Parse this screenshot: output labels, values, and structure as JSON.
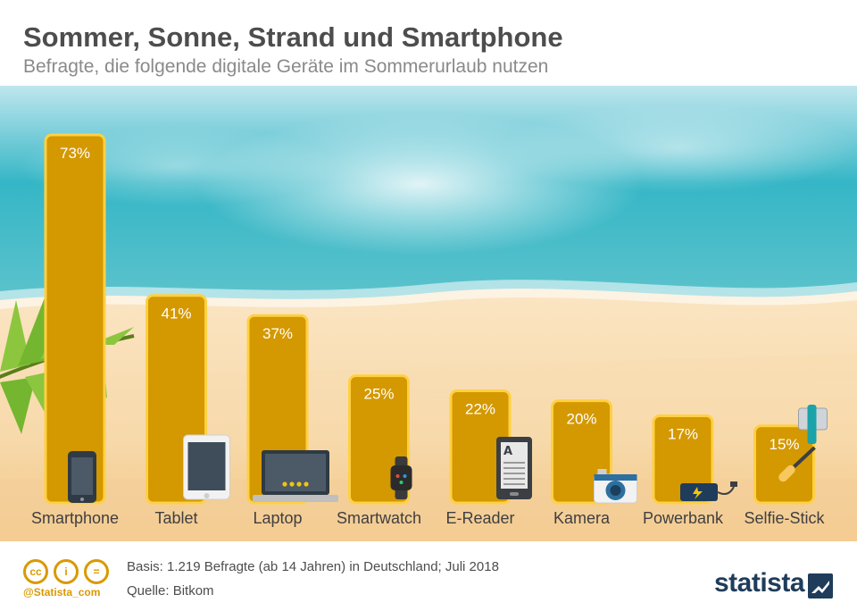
{
  "header": {
    "title": "Sommer, Sonne, Strand und Smartphone",
    "subtitle": "Befragte, die folgende digitale Geräte im Sommerurlaub nutzen"
  },
  "chart_data": {
    "type": "bar",
    "title": "Sommer, Sonne, Strand und Smartphone",
    "subtitle": "Befragte, die folgende digitale Geräte im Sommerurlaub nutzen",
    "xlabel": "",
    "ylabel": "",
    "unit": "%",
    "ylim": [
      0,
      100
    ],
    "grid": false,
    "categories": [
      "Smartphone",
      "Tablet",
      "Laptop",
      "Smartwatch",
      "E-Reader",
      "Kamera",
      "Powerbank",
      "Selfie-Stick"
    ],
    "values": [
      73,
      41,
      37,
      25,
      22,
      20,
      17,
      15
    ],
    "labels": [
      "73%",
      "41%",
      "37%",
      "25%",
      "22%",
      "20%",
      "17%",
      "15%"
    ],
    "icons": [
      "smartphone-icon",
      "tablet-icon",
      "laptop-icon",
      "smartwatch-icon",
      "e-reader-icon",
      "camera-icon",
      "powerbank-icon",
      "selfie-stick-icon"
    ]
  },
  "colors": {
    "bar_fill": "#d49800",
    "bar_stroke": "#ffd042",
    "label_text": "#ffffff",
    "category_text": "#3f3f3f",
    "title_text": "#4d4d4d",
    "subtitle_text": "#8a8a8a",
    "accent": "#d99a00",
    "logo": "#1f3c5a"
  },
  "footer": {
    "cc_labels": [
      "cc",
      "i",
      "="
    ],
    "handle": "@Statista_com",
    "basis": "Basis: 1.219 Befragte (ab 14 Jahren) in Deutschland; Juli 2018",
    "source": "Quelle: Bitkom",
    "logo": "statista"
  }
}
